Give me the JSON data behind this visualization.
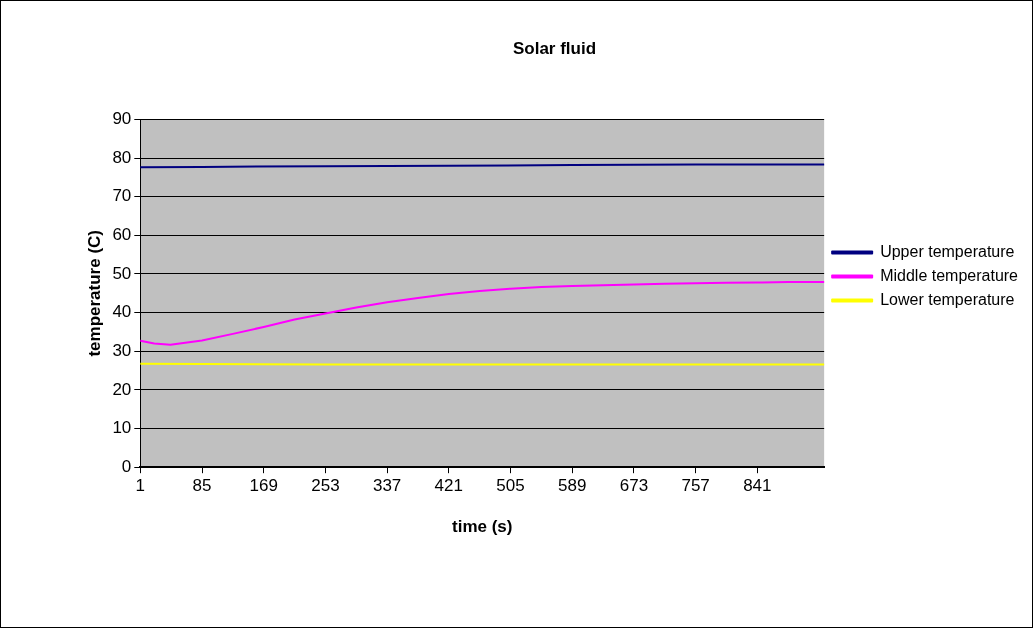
{
  "chart_data": {
    "type": "line",
    "title": "Solar fluid",
    "xlabel": "time (s)",
    "ylabel": "temperature (C)",
    "xlim": [
      1,
      932
    ],
    "xticks": [
      1,
      85,
      169,
      253,
      337,
      421,
      505,
      589,
      673,
      757,
      841
    ],
    "ylim": [
      0,
      90
    ],
    "yticks": [
      0,
      10,
      20,
      30,
      40,
      50,
      60,
      70,
      80,
      90
    ],
    "grid": "y",
    "legend": "right",
    "marker": "none",
    "line_style": "solid",
    "series": [
      {
        "name": "Upper temperature",
        "color": "#000080",
        "x": [
          1,
          85,
          253,
          421,
          589,
          757,
          932
        ],
        "values": [
          77.6,
          77.7,
          77.9,
          78.0,
          78.2,
          78.3,
          78.3
        ]
      },
      {
        "name": "Middle temperature",
        "color": "#ff00ff",
        "x": [
          1,
          20,
          42,
          85,
          127,
          169,
          211,
          253,
          295,
          337,
          379,
          421,
          463,
          505,
          547,
          589,
          631,
          673,
          715,
          757,
          799,
          841,
          883,
          932
        ],
        "values": [
          32.7,
          32.0,
          31.7,
          32.8,
          34.5,
          36.3,
          38.2,
          39.8,
          41.3,
          42.7,
          43.8,
          44.8,
          45.6,
          46.2,
          46.6,
          46.9,
          47.1,
          47.3,
          47.5,
          47.6,
          47.7,
          47.8,
          47.9,
          47.9
        ]
      },
      {
        "name": "Lower temperature",
        "color": "#ffff00",
        "x": [
          1,
          85,
          253,
          421,
          589,
          757,
          932
        ],
        "values": [
          26.8,
          26.7,
          26.6,
          26.6,
          26.6,
          26.6,
          26.6
        ]
      }
    ]
  }
}
